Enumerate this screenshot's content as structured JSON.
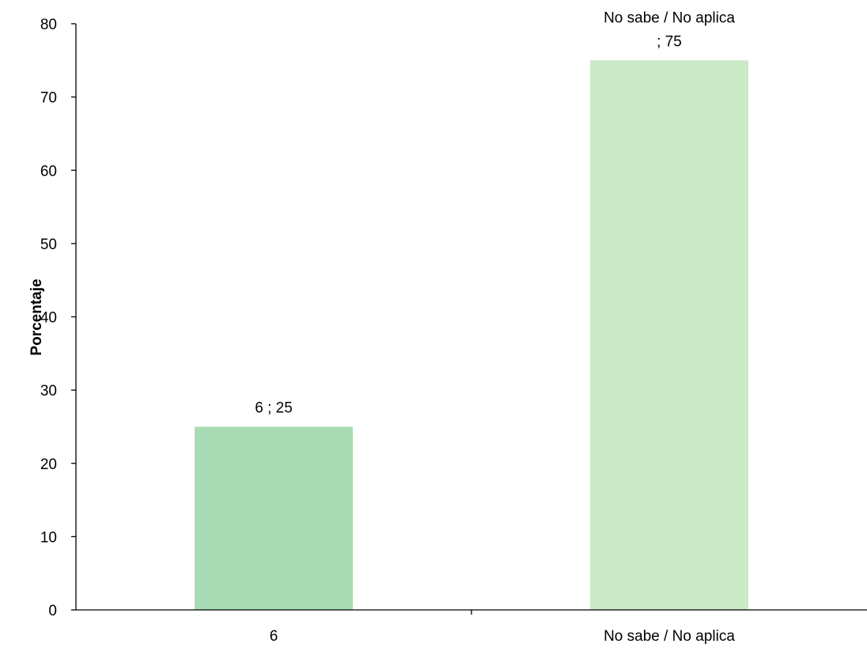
{
  "chart_data": {
    "type": "bar",
    "categories": [
      "6",
      "No sabe / No aplica"
    ],
    "values": [
      25,
      75
    ],
    "colors": [
      "#a9dcb5",
      "#cbe9c7"
    ],
    "data_labels": [
      [
        "6 ; 25"
      ],
      [
        "No sabe / No aplica",
        "; 75"
      ]
    ],
    "ylabel": "Porcentaje",
    "xlabel": "",
    "title": "",
    "ylim": [
      0,
      80
    ],
    "yticks": [
      0,
      10,
      20,
      30,
      40,
      50,
      60,
      70,
      80
    ],
    "grid": false,
    "legend": "none"
  }
}
